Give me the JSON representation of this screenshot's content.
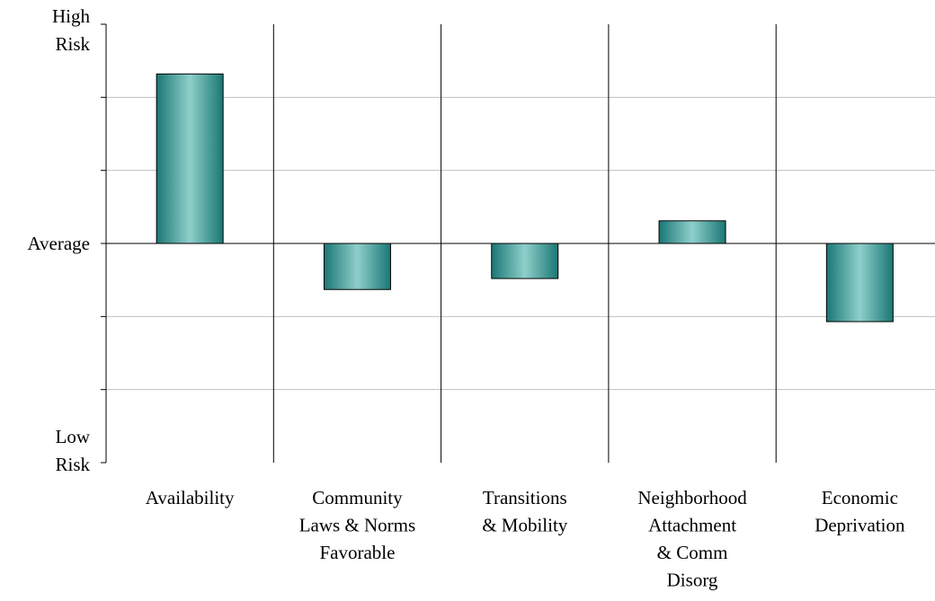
{
  "chart_data": {
    "type": "bar",
    "categories": [
      "Availability",
      "Community\nLaws & Norms\nFavorable",
      "Transitions\n& Mobility",
      "Neighborhood\nAttachment\n& Comm\nDisorg",
      "Economic\nDeprivation"
    ],
    "values": [
      2.32,
      -0.63,
      -0.48,
      0.31,
      -1.07
    ],
    "color": "#1f807d",
    "ylim": [
      -3,
      3
    ],
    "yticks": [
      {
        "value": 3,
        "label": "High\nRisk"
      },
      {
        "value": 0,
        "label": "Average"
      },
      {
        "value": -3,
        "label": "Low\nRisk"
      }
    ],
    "minor_yticks": [
      -2,
      -1,
      1,
      2
    ],
    "grid": true
  }
}
